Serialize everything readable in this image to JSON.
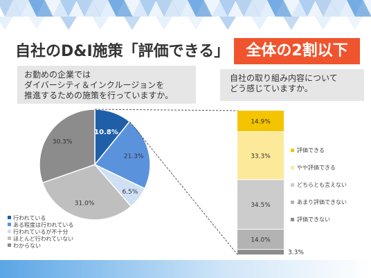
{
  "title": {
    "main": "自社のD&I施策「評価できる」",
    "highlight": "全体の2割以下"
  },
  "questions": {
    "left": [
      "お勤めの企業では",
      "ダイバーシティ＆インクルージョンを",
      "推進するための施策を行っていますか。"
    ],
    "right": [
      "自社の取り組み内容について",
      "どう感じていますか。"
    ]
  },
  "colors": {
    "accent": "#f0542e",
    "deco_blue": "#2f7fd0"
  },
  "chart_data": [
    {
      "type": "pie",
      "labels": [
        "行われている",
        "ある程度は行われている",
        "行われているが不十分",
        "ほとんど行われていない",
        "わからない"
      ],
      "values": [
        10.8,
        21.3,
        6.5,
        31.0,
        30.3
      ],
      "value_labels": [
        "10.8%",
        "21.3%",
        "6.5%",
        "31.0%",
        "30.3%"
      ],
      "colors": [
        "#1f5fa8",
        "#5b92dc",
        "#cfe0f4",
        "#bfbfbf",
        "#8c8c8c"
      ],
      "legend_position": "bottom-left"
    },
    {
      "type": "bar",
      "stacked": true,
      "labels": [
        "評価できる",
        "やや評価できる",
        "どちらとも言えない",
        "あまり評価できない",
        "評価できない"
      ],
      "values": [
        14.9,
        33.3,
        34.5,
        14.0,
        3.3
      ],
      "value_labels": [
        "14.9%",
        "33.3%",
        "34.5%",
        "14.0%",
        "3.3%"
      ],
      "colors": [
        "#f5c400",
        "#fce99a",
        "#cccccc",
        "#b3b3b3",
        "#8c8c8c"
      ],
      "legend_position": "right"
    }
  ]
}
